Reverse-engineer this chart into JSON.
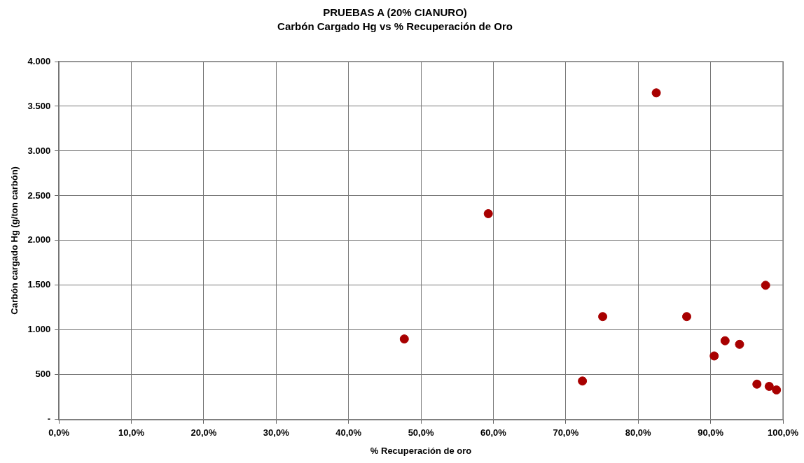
{
  "chart_data": {
    "type": "scatter",
    "title": "PRUEBAS A (20% CIANURO)",
    "subtitle": "Carbón Cargado Hg vs % Recuperación de Oro",
    "xlabel": "% Recuperación de oro",
    "ylabel": "Carbón cargado Hg (g/ton carbón)",
    "x": [
      47.7,
      59.3,
      72.3,
      75.1,
      82.5,
      86.7,
      90.5,
      92.0,
      94.0,
      97.6,
      96.4,
      98.1,
      99.1
    ],
    "values": [
      900,
      2300,
      430,
      1150,
      3650,
      1150,
      710,
      880,
      840,
      1500,
      395,
      370,
      330
    ],
    "color": "#a80000",
    "marker": "circle",
    "grid": true,
    "legend": false,
    "xlim": [
      0,
      100
    ],
    "xticks": [
      {
        "value": 0,
        "label": "0,0%"
      },
      {
        "value": 10,
        "label": "10,0%"
      },
      {
        "value": 20,
        "label": "20,0%"
      },
      {
        "value": 30,
        "label": "30,0%"
      },
      {
        "value": 40,
        "label": "40,0%"
      },
      {
        "value": 50,
        "label": "50,0%"
      },
      {
        "value": 60,
        "label": "60,0%"
      },
      {
        "value": 70,
        "label": "70,0%"
      },
      {
        "value": 80,
        "label": "80,0%"
      },
      {
        "value": 90,
        "label": "90,0%"
      },
      {
        "value": 100,
        "label": "100,0%"
      }
    ],
    "ylim": [
      0,
      4000
    ],
    "yticks": [
      {
        "value": 0,
        "label": "-"
      },
      {
        "value": 500,
        "label": "500"
      },
      {
        "value": 1000,
        "label": "1.000"
      },
      {
        "value": 1500,
        "label": "1.500"
      },
      {
        "value": 2000,
        "label": "2.000"
      },
      {
        "value": 2500,
        "label": "2.500"
      },
      {
        "value": 3000,
        "label": "3.000"
      },
      {
        "value": 3500,
        "label": "3.500"
      },
      {
        "value": 4000,
        "label": "4.000"
      }
    ]
  }
}
